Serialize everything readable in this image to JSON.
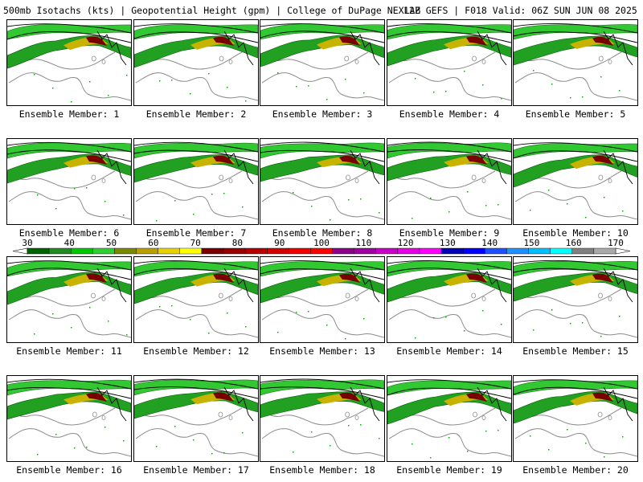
{
  "header": {
    "left": "500mb Isotachs (kts) | Geopotential Height (gpm) | College of DuPage NEXLAB",
    "right": "12Z GEFS | F018 Valid: 06Z SUN JUN 08 2025"
  },
  "members": [
    {
      "label": "Ensemble Member: 1"
    },
    {
      "label": "Ensemble Member: 2"
    },
    {
      "label": "Ensemble Member: 3"
    },
    {
      "label": "Ensemble Member: 4"
    },
    {
      "label": "Ensemble Member: 5"
    },
    {
      "label": "Ensemble Member: 6"
    },
    {
      "label": "Ensemble Member: 7"
    },
    {
      "label": "Ensemble Member: 8"
    },
    {
      "label": "Ensemble Member: 9"
    },
    {
      "label": "Ensemble Member: 10"
    },
    {
      "label": "Ensemble Member: 11"
    },
    {
      "label": "Ensemble Member: 12"
    },
    {
      "label": "Ensemble Member: 13"
    },
    {
      "label": "Ensemble Member: 14"
    },
    {
      "label": "Ensemble Member: 15"
    },
    {
      "label": "Ensemble Member: 16"
    },
    {
      "label": "Ensemble Member: 17"
    },
    {
      "label": "Ensemble Member: 18"
    },
    {
      "label": "Ensemble Member: 19"
    },
    {
      "label": "Ensemble Member: 20"
    }
  ],
  "colorbar": {
    "tick_labels": [
      "30",
      "40",
      "50",
      "60",
      "70",
      "80",
      "90",
      "100",
      "110",
      "120",
      "130",
      "140",
      "150",
      "160",
      "170"
    ],
    "colors": [
      "#006400",
      "#228b22",
      "#00c800",
      "#32cd32",
      "#7a8a00",
      "#b8a000",
      "#e6d200",
      "#ffff00",
      "#780000",
      "#960000",
      "#b40000",
      "#d20000",
      "#f00000",
      "#ff0000",
      "#8b008b",
      "#a000a0",
      "#c800c8",
      "#e600e6",
      "#ff00ff",
      "#0000b4",
      "#0000ff",
      "#1e50ff",
      "#1e90ff",
      "#00bfff",
      "#00ffff",
      "#808080",
      "#a9a9a9"
    ]
  }
}
